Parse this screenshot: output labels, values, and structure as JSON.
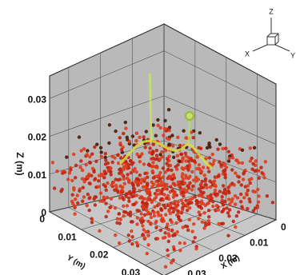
{
  "chart_data": {
    "type": "scatter3d",
    "xlabel": "X (m)",
    "ylabel": "Y (m)",
    "zlabel": "Z (m)",
    "xlim": [
      0,
      0.036
    ],
    "ylim": [
      0,
      0.036
    ],
    "zlim": [
      0,
      0.036
    ],
    "xticks": [
      0,
      0.01,
      0.02,
      0.03
    ],
    "yticks": [
      0,
      0.01,
      0.02,
      0.03
    ],
    "zticks": [
      0,
      0.01,
      0.02,
      0.03
    ],
    "grid": true,
    "wall_color": "#b9b9b9",
    "triad": {
      "x": "X",
      "y": "Y",
      "z": "Z"
    }
  }
}
